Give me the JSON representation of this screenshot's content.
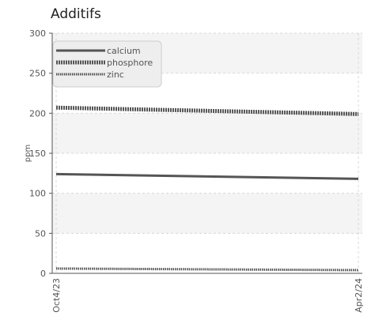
{
  "chart_data": {
    "type": "line",
    "title": "Additifs",
    "xlabel": "",
    "ylabel": "ppm",
    "ylim": [
      0,
      300
    ],
    "yticks": [
      0,
      50,
      100,
      150,
      200,
      250,
      300
    ],
    "x": [
      "Oct4/23",
      "Apr2/24"
    ],
    "grid": true,
    "legend_position": "top-left",
    "series": [
      {
        "name": "calcium",
        "values": [
          124,
          118
        ],
        "color": "#555555",
        "style": "solid"
      },
      {
        "name": "phosphore",
        "values": [
          207,
          199
        ],
        "color": "#555555",
        "style": "dotted-thick"
      },
      {
        "name": "zinc",
        "values": [
          6,
          4
        ],
        "color": "#555555",
        "style": "dotted-thin"
      }
    ]
  }
}
